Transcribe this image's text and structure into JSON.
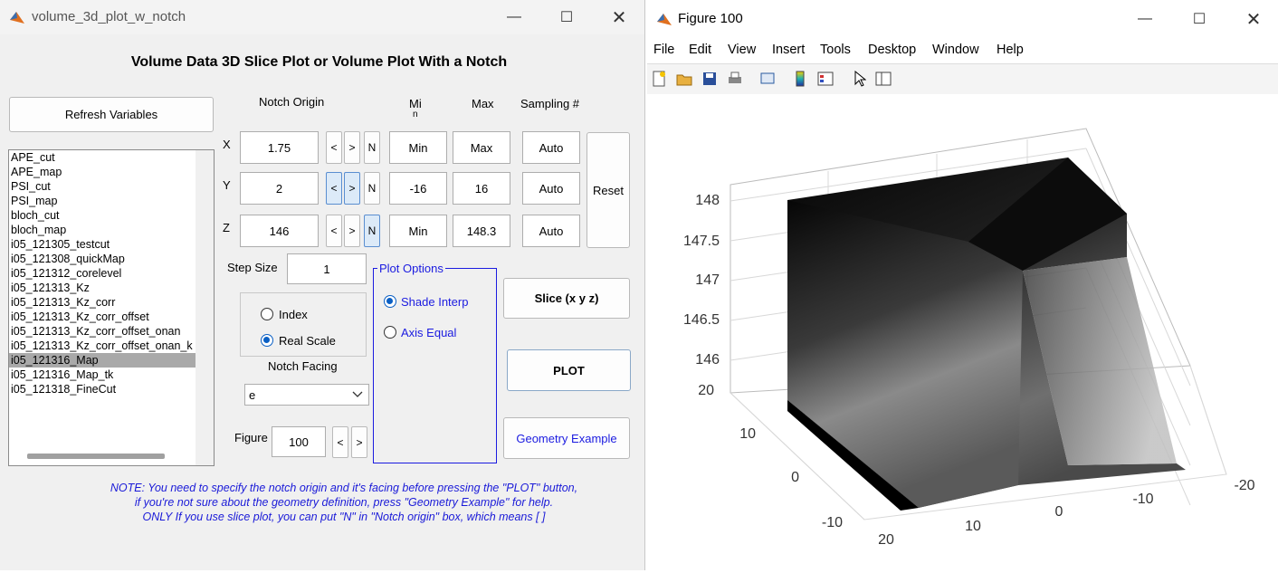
{
  "gui": {
    "window_title": "volume_3d_plot_w_notch",
    "heading": "Volume Data 3D Slice Plot or Volume Plot With a Notch",
    "refresh_button": "Refresh Variables",
    "variables": [
      "APE_cut",
      "APE_map",
      "PSI_cut",
      "PSI_map",
      "bloch_cut",
      "bloch_map",
      "i05_121305_testcut",
      "i05_121308_quickMap",
      "i05_121312_corelevel",
      "i05_121313_Kz",
      "i05_121313_Kz_corr",
      "i05_121313_Kz_corr_offset",
      "i05_121313_Kz_corr_offset_onan",
      "i05_121313_Kz_corr_offset_onan_k",
      "i05_121316_Map",
      "i05_121316_Map_tk",
      "i05_121318_FineCut"
    ],
    "selected_variable": "i05_121316_Map",
    "headers": {
      "notch_origin": "Notch Origin",
      "min_a": "Mi",
      "min_b": "n",
      "max": "Max",
      "sampling": "Sampling #"
    },
    "axes": {
      "x": {
        "label": "X",
        "origin": "1.75",
        "min": "Min",
        "max": "Max",
        "sampling": "Auto"
      },
      "y": {
        "label": "Y",
        "origin": "2",
        "min": "-16",
        "max": "16",
        "sampling": "Auto"
      },
      "z": {
        "label": "Z",
        "origin": "146",
        "min": "Min",
        "max": "148.3",
        "sampling": "Auto"
      }
    },
    "lt": "<",
    "gt": ">",
    "n": "N",
    "reset_button": "Reset",
    "step_size_label": "Step Size",
    "step_size": "1",
    "scale_options": {
      "index": "Index",
      "real_scale": "Real Scale",
      "selected": "real_scale"
    },
    "notch_facing_label": "Notch Facing",
    "notch_facing_value": "e",
    "figure_label": "Figure",
    "figure_value": "100",
    "plot_options_title": "Plot Options",
    "shade_interp": "Shade Interp",
    "axis_equal": "Axis Equal",
    "shade_interp_checked": true,
    "axis_equal_checked": false,
    "slice_button": "Slice (x y z)",
    "plot_button": "PLOT",
    "geometry_button": "Geometry Example",
    "note_1": "NOTE: You need to specify the notch origin and it's facing before pressing the \"PLOT\" button,",
    "note_2": "if you're not sure about the geometry definition, press \"Geometry Example\" for help.",
    "note_3": "ONLY If you use slice plot, you can put \"N\" in  \"Notch origin\" box, which  means [ ]"
  },
  "figure": {
    "window_title": "Figure 100",
    "menu": [
      "File",
      "Edit",
      "View",
      "Insert",
      "Tools",
      "Desktop",
      "Window",
      "Help"
    ],
    "toolbar_icons": [
      "new-figure-icon",
      "open-icon",
      "save-icon",
      "print-icon",
      "link-plot-icon",
      "colorbar-icon",
      "legend-icon",
      "pointer-icon",
      "property-inspector-icon"
    ],
    "z_ticks": [
      "148",
      "147.5",
      "147",
      "146.5",
      "146"
    ],
    "y_ticks": [
      "20",
      "10",
      "0",
      "-10"
    ],
    "x_ticks": [
      "20",
      "10",
      "0",
      "-10",
      "-20"
    ]
  }
}
